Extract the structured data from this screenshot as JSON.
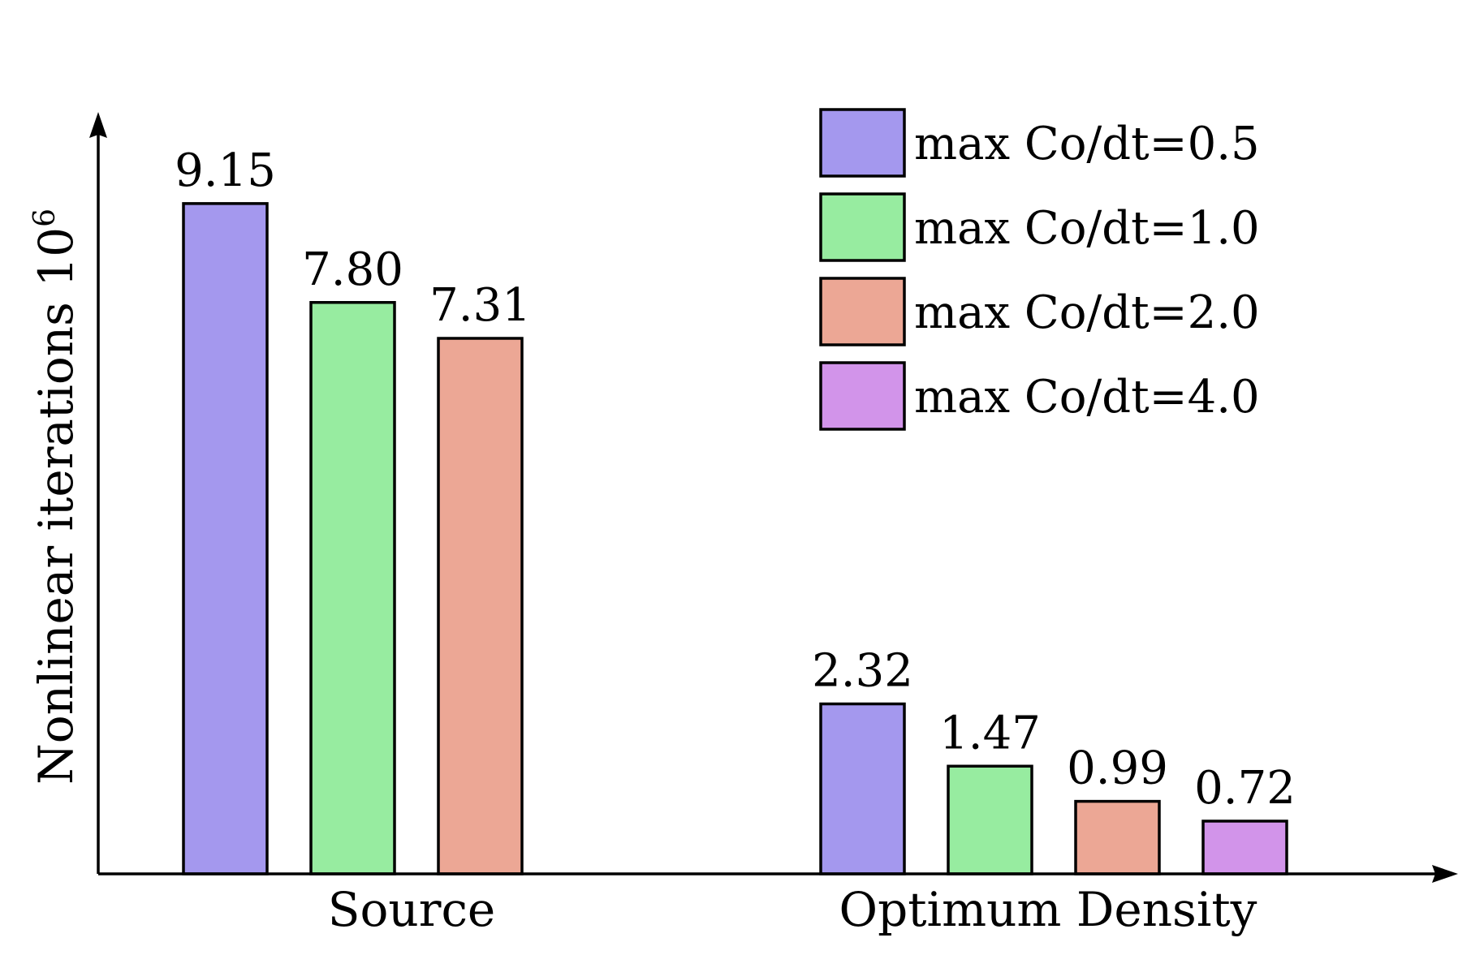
{
  "chart_data": {
    "type": "bar",
    "categories": [
      "Source",
      "Optimum Density"
    ],
    "series": [
      {
        "name": "max Co/dt=0.5",
        "color": "#a498ee",
        "values": [
          9.15,
          2.32
        ],
        "labels": [
          "9.15",
          "2.32"
        ]
      },
      {
        "name": "max Co/dt=1.0",
        "color": "#97eca0",
        "values": [
          7.8,
          1.47
        ],
        "labels": [
          "7.80",
          "1.47"
        ]
      },
      {
        "name": "max Co/dt=2.0",
        "color": "#eca795",
        "values": [
          7.31,
          0.99
        ],
        "labels": [
          "7.31",
          "0.99"
        ]
      },
      {
        "name": "max Co/dt=4.0",
        "color": "#d294ea",
        "values": [
          null,
          0.72
        ],
        "labels": [
          null,
          "0.72"
        ]
      }
    ],
    "title": "",
    "xlabel": "",
    "ylabel": "Nonlinear iterations 10",
    "ylabel_superscript": "6",
    "ylim": [
      0,
      10.4
    ],
    "grid": false,
    "legend_position": "top-right"
  }
}
